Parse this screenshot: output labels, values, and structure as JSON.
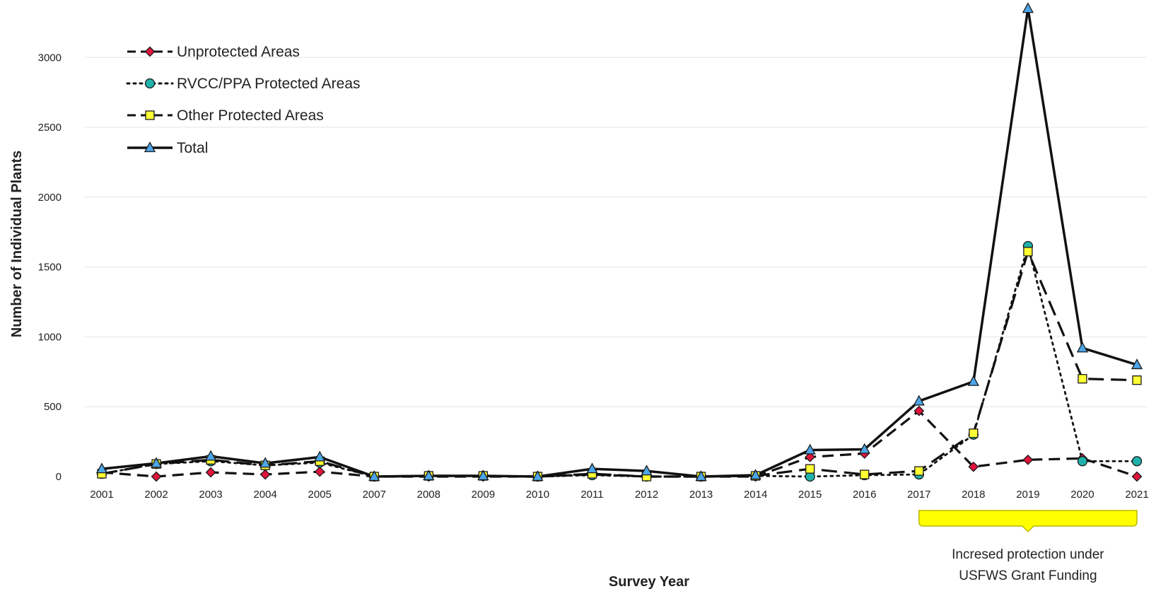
{
  "chart_data": {
    "type": "line",
    "title": "",
    "xlabel": "Survey Year",
    "ylabel": "Number of Individual Plants",
    "ylim": [
      0,
      3300
    ],
    "y_ticks": [
      0,
      500,
      1000,
      1500,
      2000,
      2500,
      3000
    ],
    "y_tick_labels": [
      "0",
      "500",
      "1000",
      "1500",
      "2000",
      "2500",
      "3000"
    ],
    "grid": "horizontal",
    "legend_position": "top-left",
    "categories": [
      "2001",
      "2002",
      "2003",
      "2004",
      "2005",
      "2007",
      "2008",
      "2009",
      "2010",
      "2011",
      "2012",
      "2013",
      "2014",
      "2015",
      "2016",
      "2017",
      "2018",
      "2019",
      "2020",
      "2021"
    ],
    "series": [
      {
        "name": "Unprotected Areas",
        "line_style": "dashed",
        "marker": "diamond",
        "marker_color": "#e0143c",
        "values": [
          30,
          0,
          30,
          15,
          35,
          0,
          0,
          0,
          0,
          15,
          0,
          0,
          0,
          140,
          165,
          470,
          70,
          120,
          130,
          0
        ]
      },
      {
        "name": "RVCC/PPA Protected Areas",
        "line_style": "dotted",
        "marker": "circle",
        "marker_color": "#20b2aa",
        "values": [
          20,
          90,
          110,
          80,
          100,
          0,
          5,
          5,
          0,
          10,
          0,
          0,
          5,
          0,
          10,
          15,
          300,
          1650,
          110,
          110
        ]
      },
      {
        "name": "Other Protected Areas",
        "line_style": "long-dash",
        "marker": "square",
        "marker_color": "#ffff33",
        "values": [
          20,
          90,
          120,
          80,
          110,
          0,
          5,
          5,
          0,
          20,
          0,
          0,
          5,
          55,
          15,
          40,
          310,
          1610,
          700,
          690
        ]
      },
      {
        "name": "Total",
        "line_style": "solid",
        "marker": "triangle",
        "marker_color": "#4da6e8",
        "values": [
          55,
          95,
          145,
          95,
          140,
          0,
          5,
          5,
          0,
          55,
          40,
          0,
          10,
          190,
          195,
          540,
          680,
          3350,
          920,
          800
        ]
      }
    ],
    "annotation": {
      "text_lines": [
        "Incresed protection under",
        "USFWS Grant Funding"
      ],
      "from": "2017",
      "to": "2021",
      "color": "#ffff00"
    }
  }
}
